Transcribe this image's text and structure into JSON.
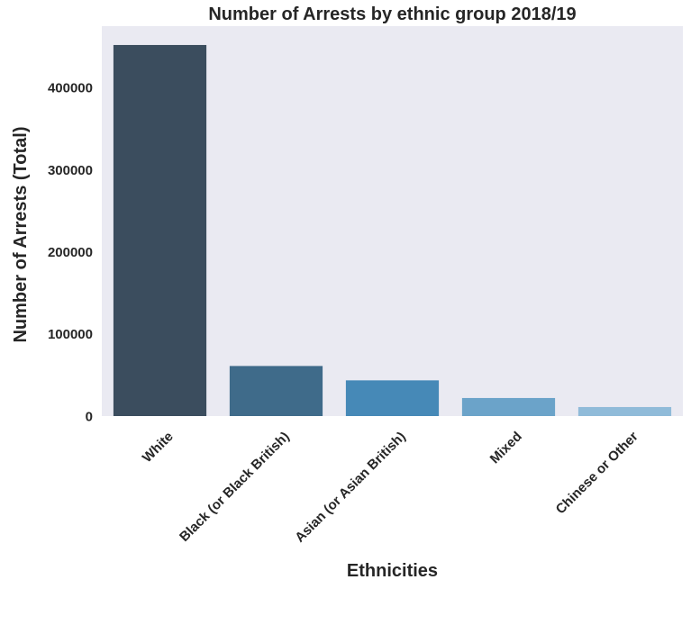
{
  "chart_data": {
    "type": "bar",
    "title": "Number of Arrests by ethnic group 2018/19",
    "xlabel": "Ethnicities",
    "ylabel": "Number of Arrests (Total)",
    "categories": [
      "White",
      "Black (or Black British)",
      "Asian (or Asian British)",
      "Mixed",
      "Chinese or Other"
    ],
    "values": [
      452000,
      61000,
      43500,
      22000,
      11000
    ],
    "colors": [
      "#3b4d5e",
      "#3f6b8a",
      "#4689b7",
      "#6ba3c9",
      "#90bbd9"
    ],
    "yticks": [
      0,
      100000,
      200000,
      300000,
      400000
    ],
    "ytick_labels": [
      "0",
      "100000",
      "200000",
      "300000",
      "400000"
    ],
    "ylim": [
      0,
      475000
    ],
    "plot_background": "#eaeaf2",
    "grid": false
  }
}
